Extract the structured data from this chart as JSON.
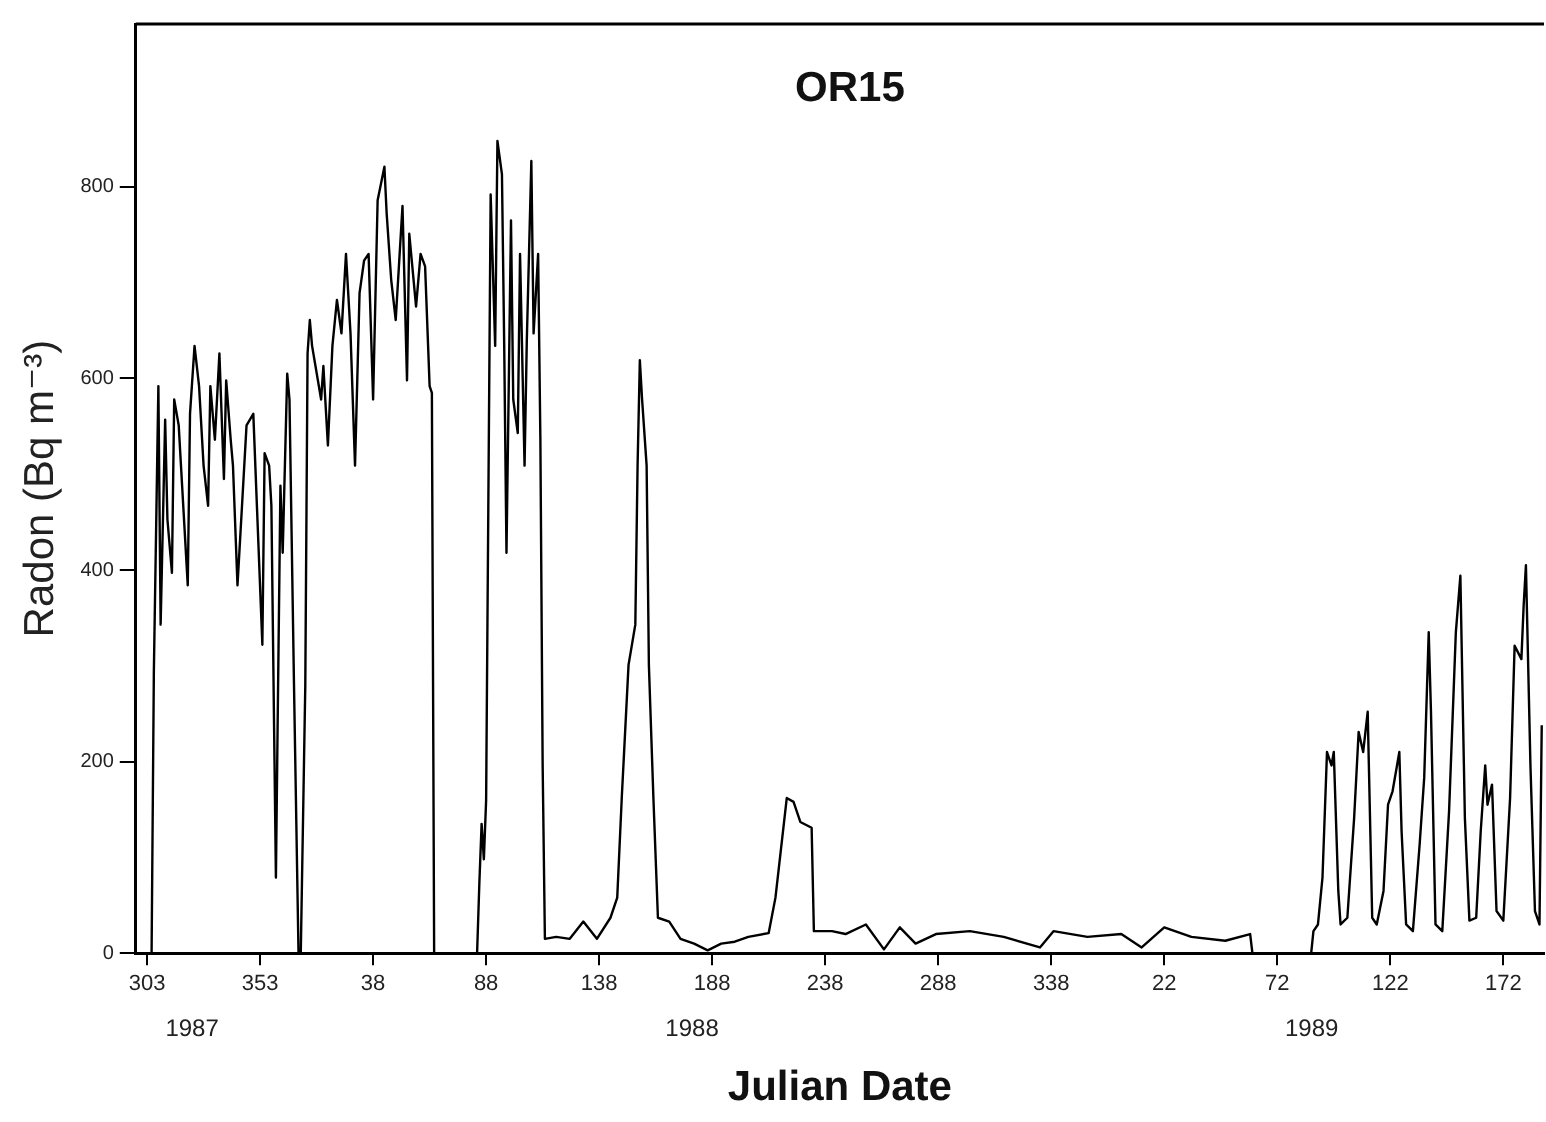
{
  "chart_data": {
    "type": "line",
    "title": "OR15",
    "xlabel": "Julian Date",
    "ylabel": "Radon (Bq m⁻³)",
    "x": [
      "1987-11-01",
      "1987-11-02",
      "1987-11-04",
      "1987-11-05",
      "1987-11-07",
      "1987-11-08",
      "1987-11-10",
      "1987-11-11",
      "1987-11-13",
      "1987-11-14",
      "1987-11-17",
      "1987-11-18",
      "1987-11-20",
      "1987-11-22",
      "1987-11-24",
      "1987-11-26",
      "1987-11-27",
      "1987-11-29",
      "1987-12-01",
      "1987-12-03",
      "1987-12-04",
      "1987-12-06",
      "1987-12-07",
      "1987-12-09",
      "1987-12-11",
      "1987-12-13",
      "1987-12-16",
      "1987-12-20",
      "1987-12-21",
      "1987-12-23",
      "1987-12-24",
      "1987-12-26",
      "1987-12-27",
      "1987-12-28",
      "1987-12-29",
      "1987-12-31",
      "1988-01-01",
      "1988-01-03",
      "1988-01-05",
      "1988-01-06",
      "1988-01-08",
      "1988-01-09",
      "1988-01-10",
      "1988-01-11",
      "1988-01-15",
      "1988-01-16",
      "1988-01-18",
      "1988-01-20",
      "1988-01-22",
      "1988-01-24",
      "1988-01-26",
      "1988-01-28",
      "1988-01-30",
      "1988-02-01",
      "1988-02-03",
      "1988-02-05",
      "1988-02-07",
      "1988-02-09",
      "1988-02-12",
      "1988-02-13",
      "1988-02-15",
      "1988-02-17",
      "1988-02-20",
      "1988-02-22",
      "1988-02-23",
      "1988-02-26",
      "1988-02-28",
      "1988-03-01",
      "1988-03-03",
      "1988-03-04",
      "1988-03-05",
      "1988-03-24",
      "1988-03-25",
      "1988-03-26",
      "1988-03-27",
      "1988-03-28",
      "1988-03-30",
      "1988-04-01",
      "1988-04-02",
      "1988-04-04",
      "1988-04-05",
      "1988-04-06",
      "1988-04-08",
      "1988-04-09",
      "1988-04-11",
      "1988-04-12",
      "1988-04-14",
      "1988-04-15",
      "1988-04-17",
      "1988-04-18",
      "1988-04-20",
      "1988-04-21",
      "1988-04-22",
      "1988-04-23",
      "1988-04-28",
      "1988-05-04",
      "1988-05-10",
      "1988-05-16",
      "1988-05-22",
      "1988-05-25",
      "1988-05-27",
      "1988-05-30",
      "1988-06-02",
      "1988-06-03",
      "1988-06-04",
      "1988-06-05",
      "1988-06-07",
      "1988-06-08",
      "1988-06-10",
      "1988-06-12",
      "1988-06-17",
      "1988-06-22",
      "1988-06-28",
      "1988-07-04",
      "1988-07-10",
      "1988-07-16",
      "1988-07-22",
      "1988-07-31",
      "1988-08-03",
      "1988-08-08",
      "1988-08-11",
      "1988-08-14",
      "1988-08-19",
      "1988-08-20",
      "1988-08-28",
      "1988-09-03",
      "1988-09-12",
      "1988-09-20",
      "1988-09-27",
      "1988-10-04",
      "1988-10-13",
      "1988-10-28",
      "1988-11-12",
      "1988-11-28",
      "1988-12-04",
      "1988-12-19",
      "1989-01-03",
      "1989-01-12",
      "1989-01-22",
      "1989-02-03",
      "1989-02-18",
      "1989-03-01",
      "1989-03-02",
      "1989-03-28",
      "1989-03-29",
      "1989-03-31",
      "1989-04-02",
      "1989-04-04",
      "1989-04-06",
      "1989-04-07",
      "1989-04-09",
      "1989-04-10",
      "1989-04-13",
      "1989-04-16",
      "1989-04-18",
      "1989-04-20",
      "1989-04-22",
      "1989-04-24",
      "1989-04-26",
      "1989-04-29",
      "1989-05-01",
      "1989-05-03",
      "1989-05-06",
      "1989-05-07",
      "1989-05-09",
      "1989-05-12",
      "1989-05-15",
      "1989-05-17",
      "1989-05-19",
      "1989-05-20",
      "1989-05-22",
      "1989-05-25",
      "1989-05-28",
      "1989-05-31",
      "1989-06-02",
      "1989-06-04",
      "1989-06-06",
      "1989-06-09",
      "1989-06-11",
      "1989-06-13",
      "1989-06-14",
      "1989-06-16",
      "1989-06-18",
      "1989-06-21",
      "1989-06-24",
      "1989-06-26",
      "1989-06-29",
      "1989-06-30",
      "1989-07-01",
      "1989-07-03",
      "1989-07-05",
      "1989-07-07",
      "1989-07-08"
    ],
    "values": [
      0,
      293,
      592,
      343,
      557,
      453,
      397,
      578,
      551,
      509,
      384,
      563,
      634,
      592,
      509,
      467,
      592,
      536,
      626,
      495,
      598,
      536,
      509,
      384,
      467,
      551,
      563,
      322,
      522,
      509,
      467,
      79,
      287,
      488,
      418,
      605,
      578,
      280,
      0,
      0,
      280,
      626,
      661,
      634,
      578,
      613,
      530,
      634,
      682,
      647,
      730,
      647,
      509,
      689,
      723,
      730,
      578,
      786,
      821,
      772,
      703,
      661,
      780,
      598,
      751,
      675,
      730,
      717,
      592,
      585,
      0,
      0,
      73,
      135,
      98,
      160,
      792,
      634,
      848,
      813,
      634,
      418,
      765,
      578,
      543,
      730,
      509,
      640,
      827,
      647,
      730,
      536,
      197,
      15,
      17,
      15,
      33,
      15,
      37,
      58,
      162,
      301,
      343,
      509,
      619,
      578,
      509,
      301,
      162,
      37,
      33,
      15,
      10,
      3,
      10,
      12,
      17,
      21,
      58,
      162,
      158,
      137,
      131,
      23,
      23,
      20,
      30,
      4,
      27,
      10,
      20,
      23,
      17,
      6,
      23,
      17,
      20,
      6,
      27,
      17,
      13,
      20,
      0,
      0,
      23,
      30,
      79,
      210,
      196,
      210,
      65,
      30,
      37,
      141,
      231,
      210,
      252,
      37,
      30,
      65,
      155,
      169,
      210,
      127,
      30,
      23,
      114,
      183,
      335,
      252,
      30,
      23,
      148,
      335,
      394,
      141,
      34,
      37,
      127,
      196,
      155,
      176,
      44,
      34,
      162,
      321,
      307,
      363,
      405,
      196,
      44,
      30,
      238
    ],
    "color": "#000000",
    "xlim": [
      "1987-10-25",
      "1989-07-09"
    ],
    "ylim": [
      0,
      970
    ],
    "xticks": [
      {
        "value": "1987-10-30",
        "label": "303"
      },
      {
        "value": "1987-12-19",
        "label": "353"
      },
      {
        "value": "1988-02-07",
        "label": "38"
      },
      {
        "value": "1988-03-28",
        "label": "88"
      },
      {
        "value": "1988-05-17",
        "label": "138"
      },
      {
        "value": "1988-07-06",
        "label": "188"
      },
      {
        "value": "1988-08-25",
        "label": "238"
      },
      {
        "value": "1988-10-14",
        "label": "288"
      },
      {
        "value": "1988-12-03",
        "label": "338"
      },
      {
        "value": "1989-01-22",
        "label": "22"
      },
      {
        "value": "1989-03-13",
        "label": "72"
      },
      {
        "value": "1989-05-02",
        "label": "122"
      },
      {
        "value": "1989-06-21",
        "label": "172"
      }
    ],
    "annotations": [
      "1987",
      "1988",
      "1989"
    ],
    "yticks": [
      0,
      200,
      400,
      600,
      800
    ],
    "grid": false,
    "legend": false,
    "marker": "none",
    "line_style": "solid"
  }
}
